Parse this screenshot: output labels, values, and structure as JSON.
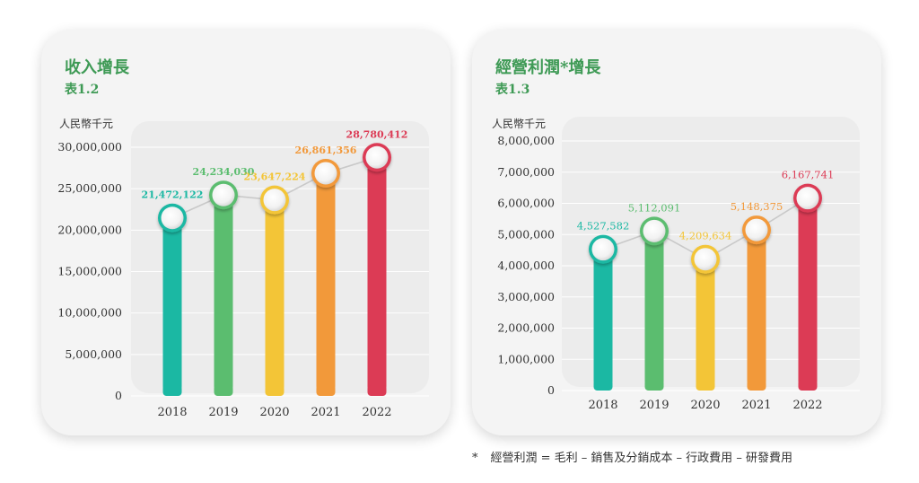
{
  "charts": {
    "left": {
      "title": "收入增長",
      "subtitle": "表1.2",
      "unit": "人民幣千元"
    },
    "right": {
      "title": "經營利潤*增長",
      "subtitle": "表1.3",
      "unit": "人民幣千元"
    }
  },
  "footnote": {
    "star": "*",
    "text": "經營利潤 = 毛利 – 銷售及分銷成本 – 行政費用 – 研發費用"
  },
  "colors": {
    "bars": [
      "#1bb8a3",
      "#5bbd6f",
      "#f3c537",
      "#f2993a",
      "#dc3b55"
    ],
    "title": "#3e9a55"
  },
  "chart_data": [
    {
      "type": "bar",
      "title": "收入增長",
      "subtitle": "表1.2",
      "ylabel": "人民幣千元",
      "categories": [
        "2018",
        "2019",
        "2020",
        "2021",
        "2022"
      ],
      "values": [
        21472122,
        24234030,
        23647224,
        26861356,
        28780412
      ],
      "data_labels": [
        "21,472,122",
        "24,234,030",
        "23,647,224",
        "26,861,356",
        "28,780,412"
      ],
      "ylim": [
        0,
        30000000
      ],
      "yticks": [
        0,
        5000000,
        10000000,
        15000000,
        20000000,
        25000000,
        30000000
      ],
      "ytick_labels": [
        "0",
        "5,000,000",
        "10,000,000",
        "15,000,000",
        "20,000,000",
        "25,000,000",
        "30,000,000"
      ],
      "grid": true
    },
    {
      "type": "bar",
      "title": "經營利潤*增長",
      "subtitle": "表1.3",
      "ylabel": "人民幣千元",
      "categories": [
        "2018",
        "2019",
        "2020",
        "2021",
        "2022"
      ],
      "values": [
        4527582,
        5112091,
        4209634,
        5148375,
        6167741
      ],
      "data_labels": [
        "4,527,582",
        "5,112,091",
        "4,209,634",
        "5,148,375",
        "6,167,741"
      ],
      "ylim": [
        0,
        8000000
      ],
      "yticks": [
        0,
        1000000,
        2000000,
        3000000,
        4000000,
        5000000,
        6000000,
        7000000,
        8000000
      ],
      "ytick_labels": [
        "0",
        "1,000,000",
        "2,000,000",
        "3,000,000",
        "4,000,000",
        "5,000,000",
        "6,000,000",
        "7,000,000",
        "8,000,000"
      ],
      "grid": true
    }
  ]
}
